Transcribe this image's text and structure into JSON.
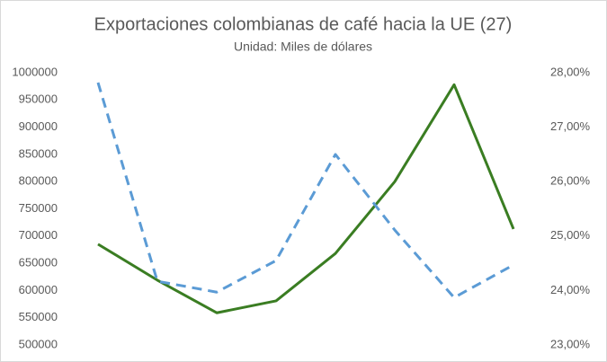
{
  "chart_data": {
    "type": "line",
    "title": "Exportaciones colombianas de café hacia la UE (27)",
    "subtitle": "Unidad: Miles de dólares",
    "categories": [
      null,
      null,
      null,
      null,
      null,
      null,
      null,
      null
    ],
    "series": [
      {
        "color": "#3a7d22",
        "values": [
          685000,
          619000,
          559000,
          581000,
          668000,
          800000,
          978000,
          713000
        ]
      },
      {
        "color": "#5b9bd5",
        "dashed": true,
        "axis": "y2",
        "values": [
          27.82,
          24.17,
          23.97,
          24.55,
          26.5,
          25.11,
          23.87,
          24.47
        ]
      }
    ],
    "ylim": [
      500000,
      1000000
    ],
    "yticks": [
      500000,
      550000,
      600000,
      650000,
      700000,
      750000,
      800000,
      850000,
      900000,
      950000,
      1000000
    ],
    "y2lim": [
      23,
      28
    ],
    "y2ticks": [
      {
        "value": 23,
        "label": "23,00%"
      },
      {
        "value": 24,
        "label": "24,00%"
      },
      {
        "value": 25,
        "label": "25,00%"
      },
      {
        "value": 26,
        "label": "26,00%"
      },
      {
        "value": 27,
        "label": "27,00%"
      },
      {
        "value": 28,
        "label": "28,00%"
      }
    ]
  }
}
